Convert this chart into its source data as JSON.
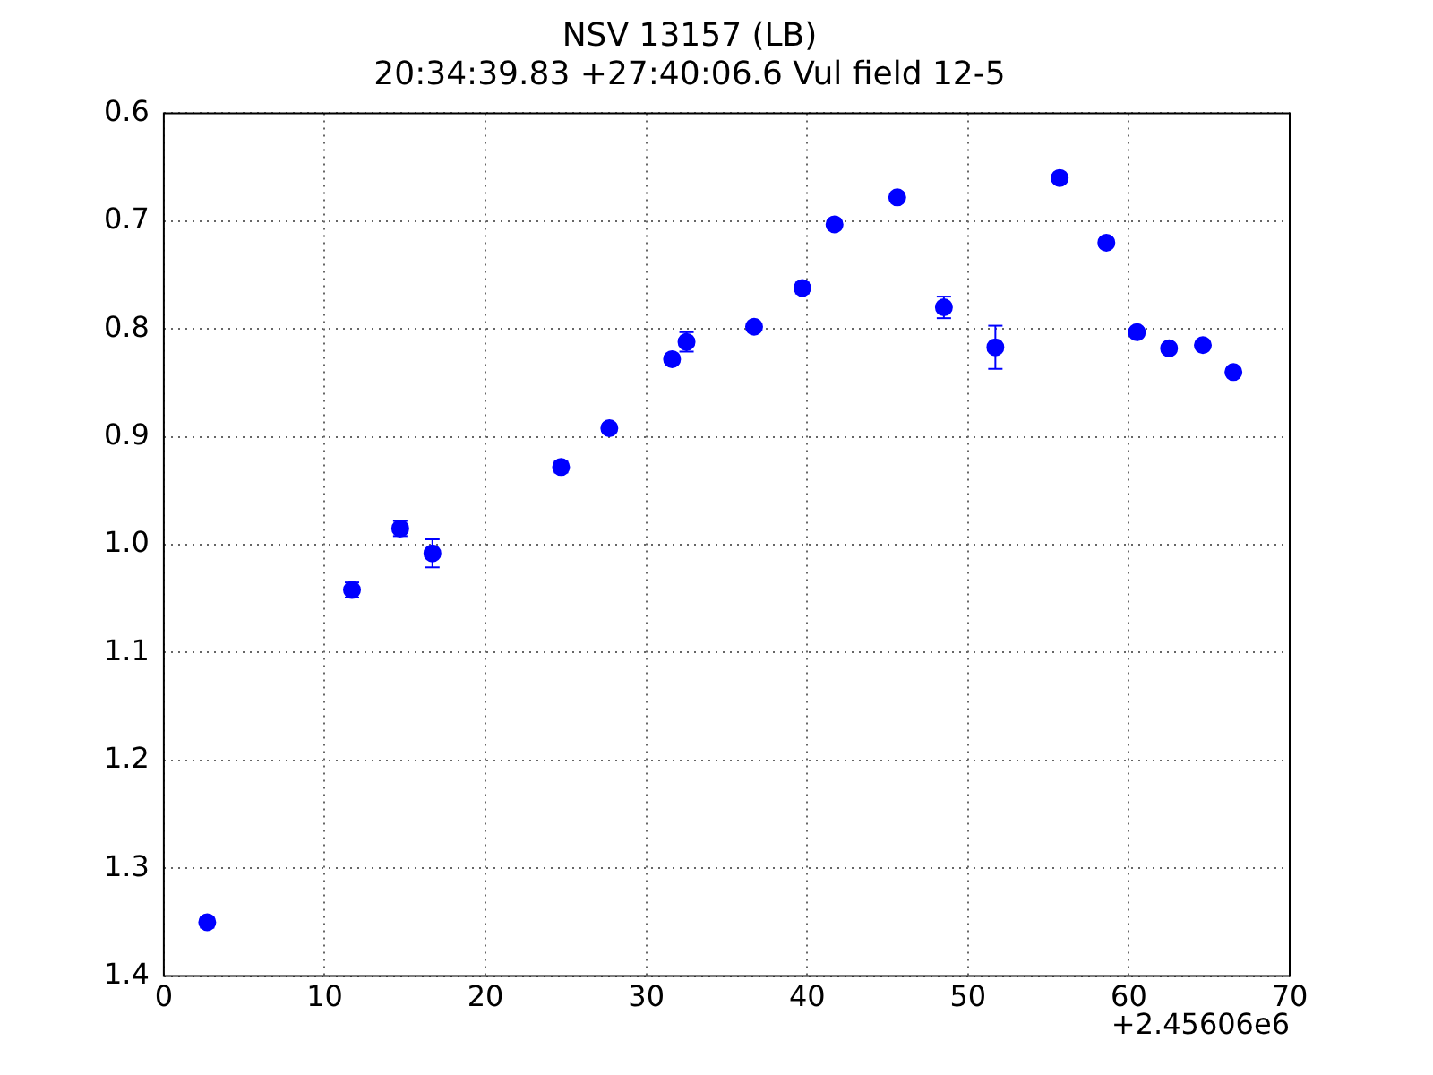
{
  "chart_data": {
    "type": "scatter",
    "title": "NSV 13157 (LB)",
    "subtitle": "20:34:39.83 +27:40:06.6 Vul field 12-5",
    "x": [
      2.7,
      11.7,
      14.7,
      16.7,
      24.7,
      27.7,
      31.6,
      32.5,
      36.7,
      39.7,
      41.7,
      45.6,
      48.5,
      51.7,
      55.7,
      58.6,
      60.5,
      62.5,
      64.6,
      66.5
    ],
    "series": [
      {
        "color": "#0000ff",
        "values": [
          1.35,
          1.042,
          0.985,
          1.008,
          0.928,
          0.892,
          0.828,
          0.812,
          0.798,
          0.762,
          0.703,
          0.678,
          0.78,
          0.817,
          0.66,
          0.72,
          0.803,
          0.818,
          0.815,
          0.84
        ],
        "errors": [
          0.005,
          0.007,
          0.007,
          0.013,
          0.005,
          0.004,
          0.004,
          0.009,
          0.004,
          0.005,
          0.004,
          0.004,
          0.01,
          0.02,
          0.004,
          0.004,
          0.004,
          0.004,
          0.004,
          0.004
        ]
      }
    ],
    "xlim": [
      0,
      70
    ],
    "xticks": [
      0,
      10,
      20,
      30,
      40,
      50,
      60,
      70
    ],
    "ylim": [
      1.4,
      0.6
    ],
    "yticks": [
      {
        "value": 0.6,
        "label": "0.6"
      },
      {
        "value": 0.7,
        "label": "0.7"
      },
      {
        "value": 0.8,
        "label": "0.8"
      },
      {
        "value": 0.9,
        "label": "0.9"
      },
      {
        "value": 1.0,
        "label": "1.0"
      },
      {
        "value": 1.1,
        "label": "1.1"
      },
      {
        "value": 1.2,
        "label": "1.2"
      },
      {
        "value": 1.3,
        "label": "1.3"
      },
      {
        "value": 1.4,
        "label": "1.4"
      }
    ],
    "annotations": [
      "+2.45606e6"
    ],
    "grid": true,
    "marker": "circle",
    "legend": false
  }
}
